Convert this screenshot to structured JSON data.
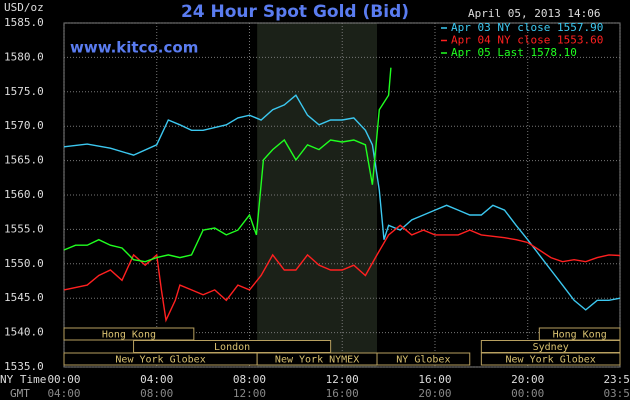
{
  "chart_data": {
    "type": "line",
    "title": "24 Hour Spot Gold (Bid)",
    "watermark": "www.kitco.com",
    "timestamp": "April 05, 2013 14:06",
    "y_label": "USD/oz",
    "x_label": "NY Time",
    "x2_label": "GMT",
    "ylim": [
      1535,
      1585
    ],
    "yticks": [
      {
        "value": 1535,
        "label": "1535.0"
      },
      {
        "value": 1540,
        "label": "1540.0"
      },
      {
        "value": 1545,
        "label": "1545.0"
      },
      {
        "value": 1550,
        "label": "1550.0"
      },
      {
        "value": 1555,
        "label": "1555.0"
      },
      {
        "value": 1560,
        "label": "1560.0"
      },
      {
        "value": 1565,
        "label": "1565.0"
      },
      {
        "value": 1570,
        "label": "1570.0"
      },
      {
        "value": 1575,
        "label": "1575.0"
      },
      {
        "value": 1580,
        "label": "1580.0"
      },
      {
        "value": 1585,
        "label": "1585.0"
      }
    ],
    "xlim": [
      0,
      23.98
    ],
    "xticks": [
      {
        "value": 0,
        "label": "00:00"
      },
      {
        "value": 4,
        "label": "04:00"
      },
      {
        "value": 8,
        "label": "08:00"
      },
      {
        "value": 12,
        "label": "12:00"
      },
      {
        "value": 16,
        "label": "16:00"
      },
      {
        "value": 20,
        "label": "20:00"
      },
      {
        "value": 23.98,
        "label": "23:59"
      }
    ],
    "xticks_gmt": [
      "04:00",
      "08:00",
      "12:00",
      "16:00",
      "20:00",
      "00:00",
      "03:59"
    ],
    "grid": true,
    "highlight": [
      8.33,
      13.5
    ],
    "session_rows": [
      [
        {
          "label": "Hong Kong",
          "start": 0,
          "end": 5.6
        },
        {
          "label": "Hong Kong",
          "start": 20.5,
          "end": 23.98
        }
      ],
      [
        {
          "label": "London",
          "start": 3,
          "end": 11.5
        },
        {
          "label": "Sydney",
          "start": 18,
          "end": 23.98
        }
      ],
      [
        {
          "label": "New York Globex",
          "start": 0,
          "end": 8.33
        },
        {
          "label": "New York NYMEX",
          "start": 8.33,
          "end": 13.5
        },
        {
          "label": "NY Globex",
          "start": 13.5,
          "end": 17.5
        },
        {
          "label": "New York Globex",
          "start": 18,
          "end": 23.98
        }
      ]
    ],
    "series": [
      {
        "name": "Apr 03 NY close 1557.90",
        "color": "#3cc8f0",
        "x": [
          0,
          1,
          2,
          3,
          4,
          4.5,
          5,
          5.5,
          6,
          7,
          7.5,
          8,
          8.5,
          9,
          9.5,
          10,
          10.5,
          11,
          11.5,
          12,
          12.5,
          13,
          13.3,
          13.6,
          13.8,
          14,
          14.5,
          15,
          15.5,
          16,
          16.5,
          17,
          17.5,
          18,
          18.5,
          19,
          19.5,
          20,
          20.5,
          21,
          21.5,
          22,
          22.5,
          23,
          23.5,
          23.98
        ],
        "values": [
          1567,
          1567.4,
          1566.8,
          1565.8,
          1567.3,
          1570.9,
          1570.2,
          1569.4,
          1569.4,
          1570.2,
          1571.2,
          1571.6,
          1570.9,
          1572.4,
          1573.1,
          1574.5,
          1571.6,
          1570.2,
          1570.9,
          1570.9,
          1571.2,
          1569.4,
          1567.3,
          1560.7,
          1553.5,
          1555.6,
          1554.9,
          1556.4,
          1557.1,
          1557.8,
          1558.5,
          1557.8,
          1557.1,
          1557.1,
          1558.5,
          1557.8,
          1555.6,
          1553.5,
          1551.3,
          1549.1,
          1546.9,
          1544.7,
          1543.3,
          1544.7,
          1544.7,
          1545
        ]
      },
      {
        "name": "Apr 04 NY close 1553.60",
        "color": "#ff2020",
        "x": [
          0,
          1,
          1.5,
          2,
          2.5,
          3,
          3.5,
          4,
          4.2,
          4.4,
          4.8,
          5,
          5.5,
          6,
          6.5,
          7,
          7.5,
          8,
          8.5,
          9,
          9.5,
          10,
          10.5,
          11,
          11.5,
          12,
          12.5,
          13,
          13.5,
          14,
          14.5,
          15,
          15.5,
          16,
          17,
          17.5,
          18,
          19,
          19.5,
          20,
          20.5,
          21,
          21.5,
          22,
          22.5,
          23,
          23.5,
          23.98
        ],
        "values": [
          1546.2,
          1546.9,
          1548.3,
          1549.1,
          1547.6,
          1551.3,
          1549.8,
          1551.3,
          1546.2,
          1541.8,
          1544.7,
          1546.9,
          1546.2,
          1545.5,
          1546.2,
          1544.7,
          1546.9,
          1546.2,
          1548.3,
          1551.3,
          1549.1,
          1549.1,
          1551.3,
          1549.8,
          1549.1,
          1549.1,
          1549.8,
          1548.3,
          1551.3,
          1554.2,
          1555.6,
          1554.2,
          1554.9,
          1554.2,
          1554.2,
          1554.9,
          1554.2,
          1553.8,
          1553.5,
          1553.1,
          1552,
          1550.9,
          1550.3,
          1550.6,
          1550.3,
          1550.9,
          1551.3,
          1551.2
        ]
      },
      {
        "name": "Apr 05 Last 1578.10",
        "color": "#20ff20",
        "x": [
          0,
          0.5,
          1,
          1.5,
          2,
          2.5,
          3,
          3.5,
          4,
          4.5,
          5,
          5.5,
          6,
          6.5,
          7,
          7.5,
          8,
          8.3,
          8.6,
          9,
          9.5,
          10,
          10.5,
          11,
          11.5,
          12,
          12.5,
          13,
          13.3,
          13.6,
          14,
          14.1
        ],
        "values": [
          1552,
          1552.7,
          1552.7,
          1553.5,
          1552.7,
          1552.3,
          1550.6,
          1550.3,
          1550.9,
          1551.3,
          1550.9,
          1551.3,
          1554.9,
          1555.2,
          1554.2,
          1554.9,
          1557.1,
          1554.2,
          1565.1,
          1566.6,
          1568,
          1565.1,
          1567.3,
          1566.6,
          1568,
          1567.7,
          1568,
          1567.3,
          1561.5,
          1572.4,
          1574.5,
          1578.5
        ]
      }
    ]
  }
}
